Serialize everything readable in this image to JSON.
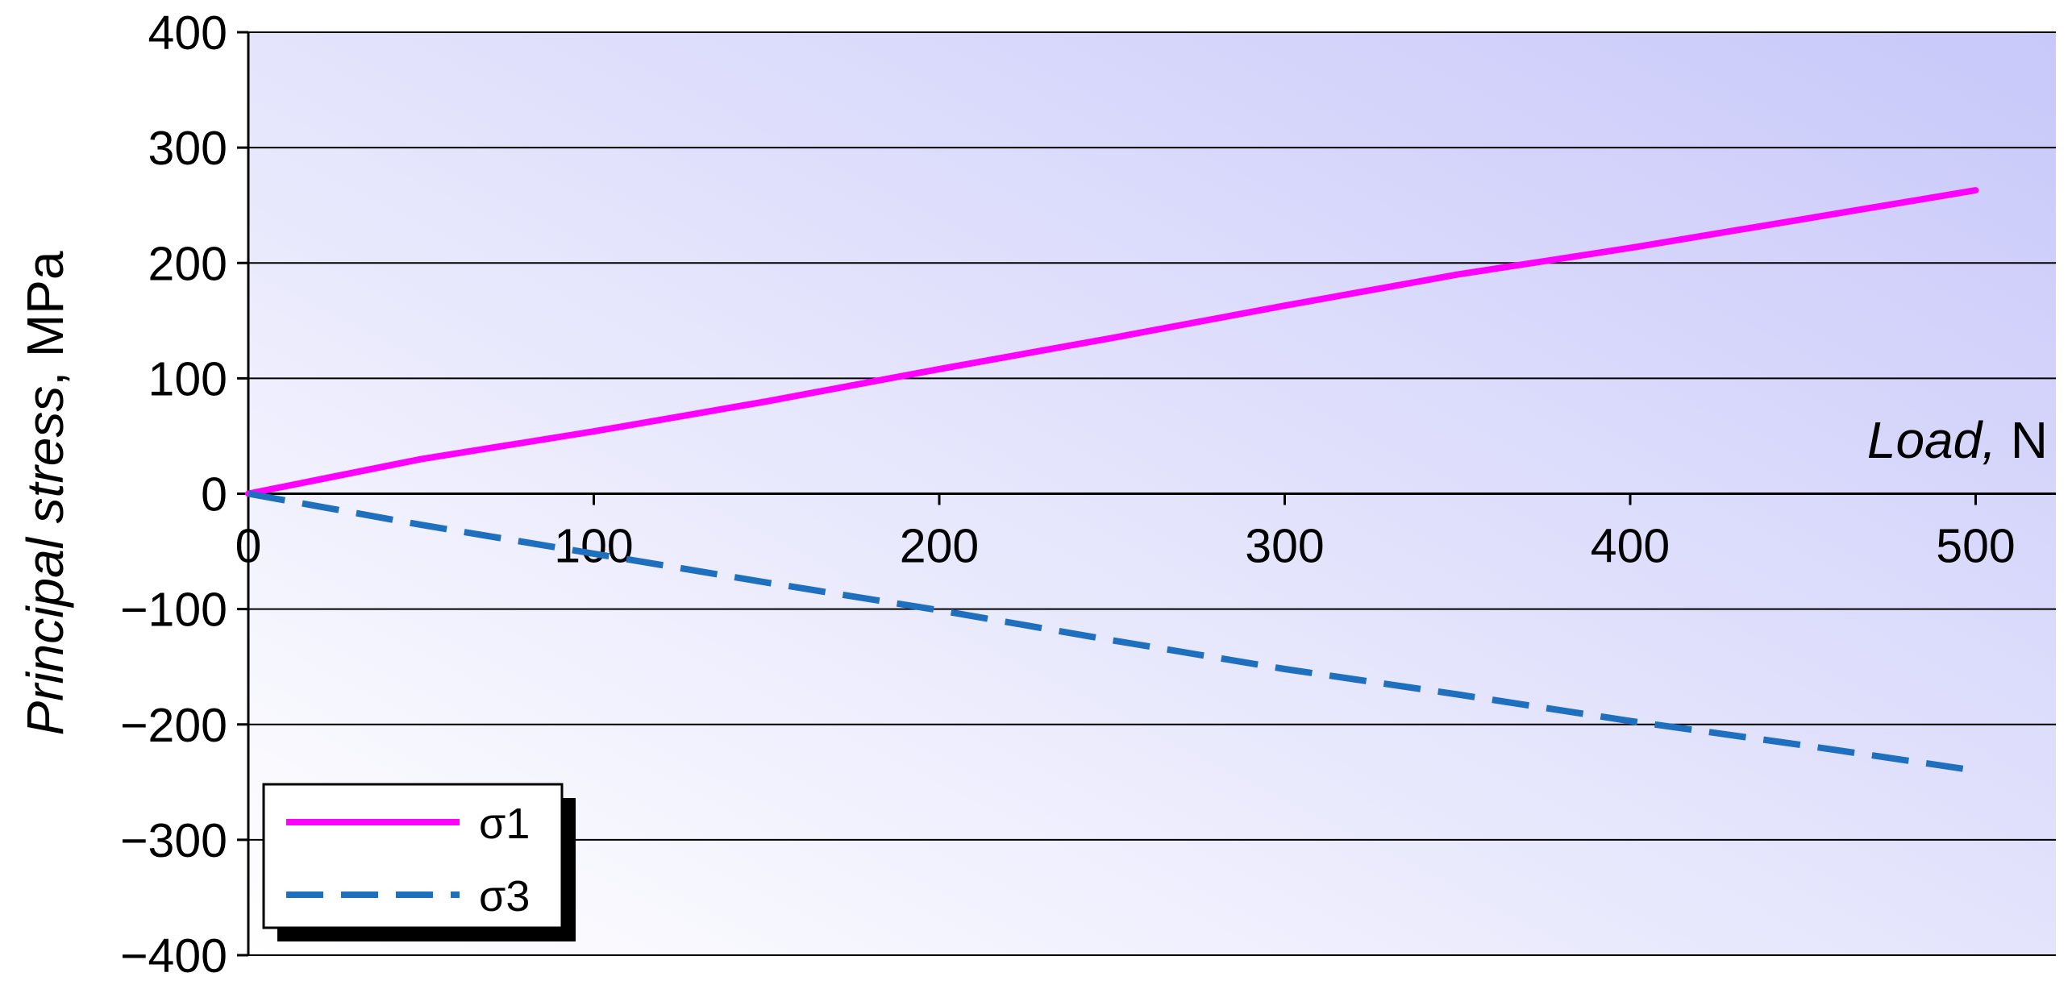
{
  "chart_data": {
    "type": "line",
    "xlabel": {
      "italic": "Load,",
      "unit": " N"
    },
    "ylabel": {
      "italic": "Principal stress",
      "unit": ", MPa"
    },
    "xlim": [
      0,
      525
    ],
    "ylim": [
      -400,
      400
    ],
    "xticks": [
      "0",
      "100",
      "200",
      "300",
      "400",
      "500"
    ],
    "xtick_values": [
      0,
      100,
      200,
      300,
      400,
      500
    ],
    "yticks": [
      "400",
      "300",
      "200",
      "100",
      "0",
      "−100",
      "−200",
      "−300",
      "−400"
    ],
    "ytick_values": [
      400,
      300,
      200,
      100,
      0,
      -100,
      -200,
      -300,
      -400
    ],
    "grid": true,
    "legend_position": "bottom-left",
    "series": [
      {
        "name": "σ1",
        "color": "#ff00ff",
        "style": "solid",
        "x": [
          0,
          50,
          100,
          150,
          200,
          250,
          300,
          350,
          400,
          450,
          500
        ],
        "y": [
          0,
          30,
          54,
          80,
          108,
          135,
          163,
          190,
          213,
          238,
          263
        ]
      },
      {
        "name": "σ3",
        "color": "#1f6fbf",
        "style": "dashed",
        "x": [
          0,
          50,
          100,
          150,
          200,
          250,
          300,
          350,
          400,
          450,
          500
        ],
        "y": [
          0,
          -27,
          -52,
          -77,
          -101,
          -127,
          -152,
          -174,
          -197,
          -218,
          -240
        ]
      }
    ]
  }
}
